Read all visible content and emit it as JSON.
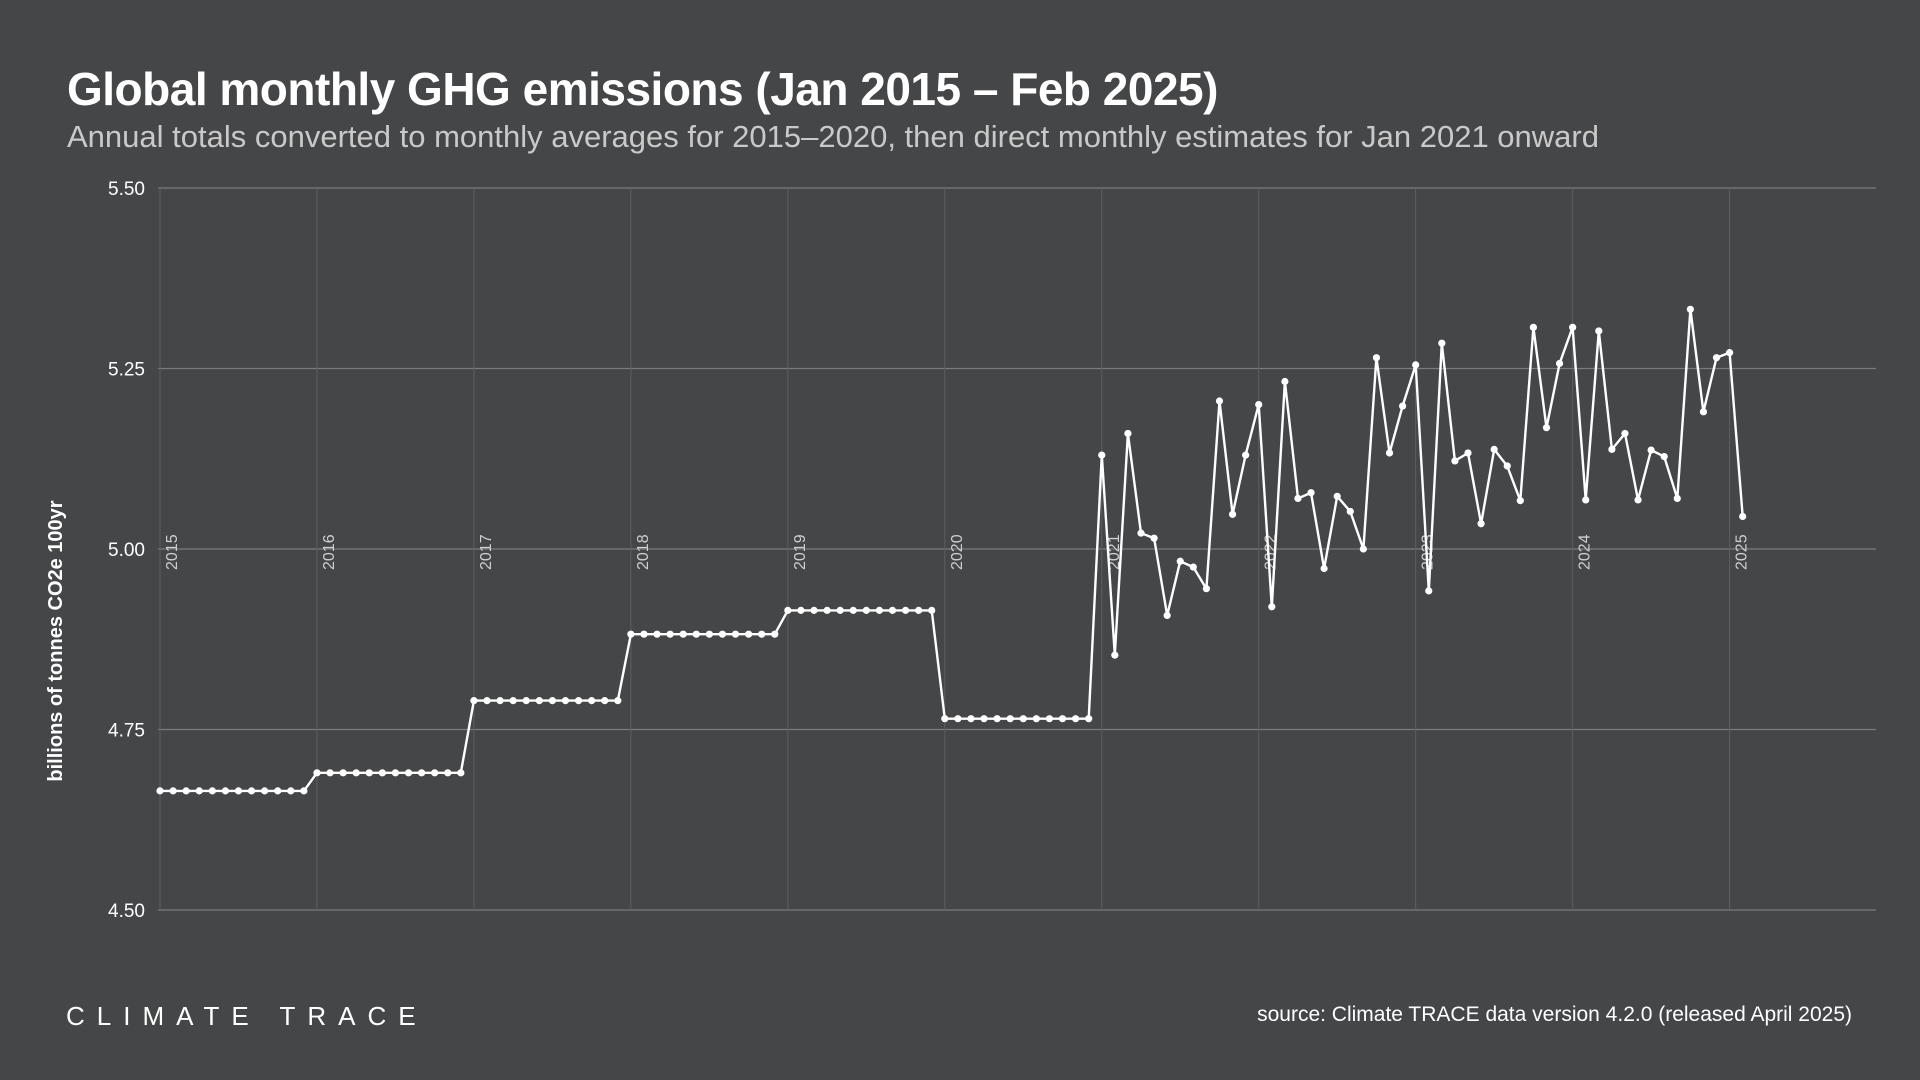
{
  "title": "Global monthly GHG emissions (Jan 2015 – Feb 2025)",
  "subtitle": "Annual totals converted to monthly averages for 2015–2020, then direct monthly estimates for Jan 2021 onward",
  "footer": {
    "logo": "CLIMATE TRACE",
    "source": "source: Climate TRACE data version 4.2.0 (released April 2025)"
  },
  "colors": {
    "background": "#454648",
    "line": "#ffffff",
    "grid": "#7a7b7d"
  },
  "chart_data": {
    "type": "line",
    "ylabel": "billions of tonnes CO2e 100yr",
    "ylim": [
      4.5,
      5.5
    ],
    "yticks": [
      "4.50",
      "4.75",
      "5.00",
      "5.25",
      "5.50"
    ],
    "year_labels": [
      "2015",
      "2016",
      "2017",
      "2018",
      "2019",
      "2020",
      "2021",
      "2022",
      "2023",
      "2024",
      "2025"
    ],
    "grid": true,
    "start": "2015-01",
    "end": "2025-02",
    "annual_monthly_averages": [
      {
        "year": "2015",
        "value": 4.665
      },
      {
        "year": "2016",
        "value": 4.69
      },
      {
        "year": "2017",
        "value": 4.79
      },
      {
        "year": "2018",
        "value": 4.882
      },
      {
        "year": "2019",
        "value": 4.915
      },
      {
        "year": "2020",
        "value": 4.765
      }
    ],
    "monthly": [
      {
        "month": "2021-01",
        "value": 5.13
      },
      {
        "month": "2021-02",
        "value": 4.853
      },
      {
        "month": "2021-03",
        "value": 5.16
      },
      {
        "month": "2021-04",
        "value": 5.022
      },
      {
        "month": "2021-05",
        "value": 5.015
      },
      {
        "month": "2021-06",
        "value": 4.908
      },
      {
        "month": "2021-07",
        "value": 4.983
      },
      {
        "month": "2021-08",
        "value": 4.975
      },
      {
        "month": "2021-09",
        "value": 4.945
      },
      {
        "month": "2021-10",
        "value": 5.205
      },
      {
        "month": "2021-11",
        "value": 5.048
      },
      {
        "month": "2021-12",
        "value": 5.13
      },
      {
        "month": "2022-01",
        "value": 5.2
      },
      {
        "month": "2022-02",
        "value": 4.92
      },
      {
        "month": "2022-03",
        "value": 5.232
      },
      {
        "month": "2022-04",
        "value": 5.07
      },
      {
        "month": "2022-05",
        "value": 5.078
      },
      {
        "month": "2022-06",
        "value": 4.973
      },
      {
        "month": "2022-07",
        "value": 5.073
      },
      {
        "month": "2022-08",
        "value": 5.052
      },
      {
        "month": "2022-09",
        "value": 5.0
      },
      {
        "month": "2022-10",
        "value": 5.265
      },
      {
        "month": "2022-11",
        "value": 5.133
      },
      {
        "month": "2022-12",
        "value": 5.198
      },
      {
        "month": "2023-01",
        "value": 5.255
      },
      {
        "month": "2023-02",
        "value": 4.942
      },
      {
        "month": "2023-03",
        "value": 5.285
      },
      {
        "month": "2023-04",
        "value": 5.122
      },
      {
        "month": "2023-05",
        "value": 5.133
      },
      {
        "month": "2023-06",
        "value": 5.035
      },
      {
        "month": "2023-07",
        "value": 5.138
      },
      {
        "month": "2023-08",
        "value": 5.115
      },
      {
        "month": "2023-09",
        "value": 5.067
      },
      {
        "month": "2023-10",
        "value": 5.307
      },
      {
        "month": "2023-11",
        "value": 5.168
      },
      {
        "month": "2023-12",
        "value": 5.257
      },
      {
        "month": "2024-01",
        "value": 5.307
      },
      {
        "month": "2024-02",
        "value": 5.068
      },
      {
        "month": "2024-03",
        "value": 5.302
      },
      {
        "month": "2024-04",
        "value": 5.138
      },
      {
        "month": "2024-05",
        "value": 5.16
      },
      {
        "month": "2024-06",
        "value": 5.068
      },
      {
        "month": "2024-07",
        "value": 5.137
      },
      {
        "month": "2024-08",
        "value": 5.128
      },
      {
        "month": "2024-09",
        "value": 5.07
      },
      {
        "month": "2024-10",
        "value": 5.332
      },
      {
        "month": "2024-11",
        "value": 5.19
      },
      {
        "month": "2024-12",
        "value": 5.265
      },
      {
        "month": "2025-01",
        "value": 5.272
      },
      {
        "month": "2025-02",
        "value": 5.045
      }
    ]
  }
}
